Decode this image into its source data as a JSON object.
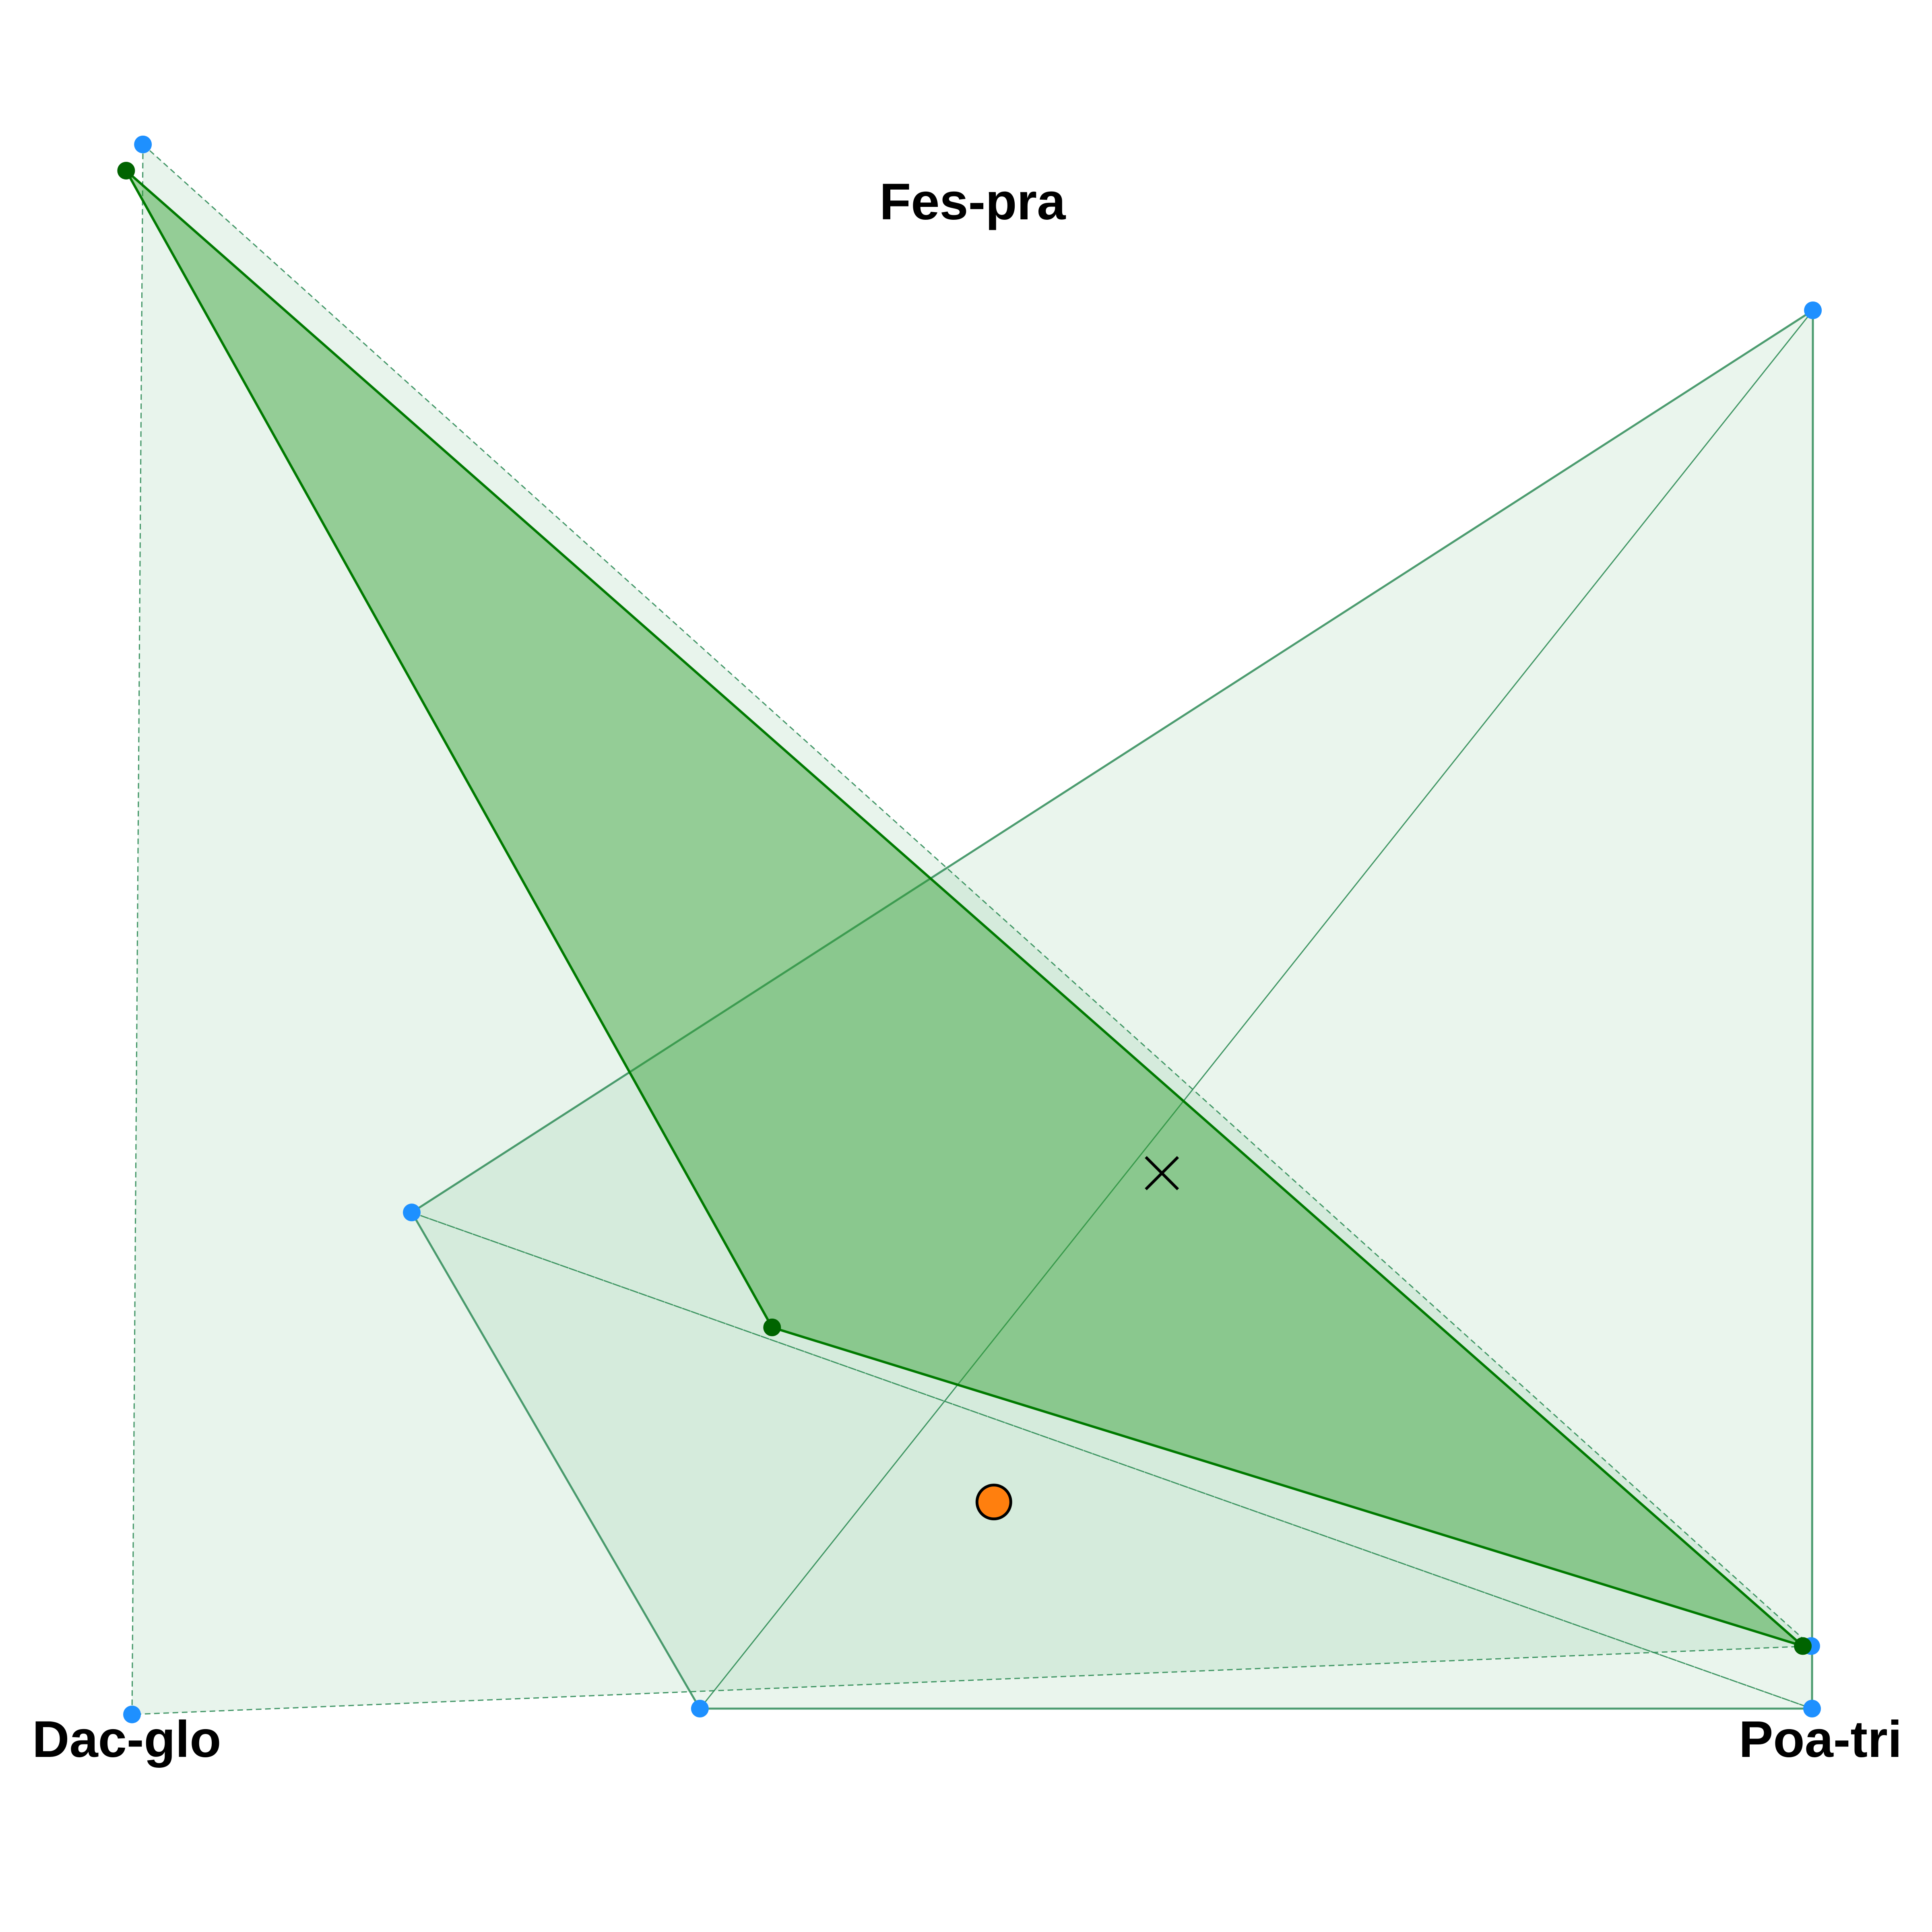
{
  "chart_data": {
    "type": "scatter",
    "subtype": "ternary",
    "vertices": {
      "top": "Fes-pra",
      "left": "Dac-glo",
      "right": "Poa-tri"
    },
    "colors": {
      "frame": "#6e6e6e",
      "outer_fill": "#2e9e4f",
      "outer_edge": "#2e8b57",
      "inner_fill": "#2e9e2e",
      "inner_edge": "#007a00",
      "inner_vertex": "#006400",
      "outer_vertex": "#1e90ff",
      "focal_point": "#ff7f0e",
      "centroid_marker": "#000000"
    },
    "outer_polygons": [
      {
        "name": "",
        "line": "dashed",
        "points": [
          {
            "fes_pra": 1.075,
            "poa_tri": -0.531,
            "dac_glo": 0.456
          },
          {
            "fes_pra": 0.043,
            "poa_tri": 0.978,
            "dac_glo": -0.021
          },
          {
            "fes_pra": -0.004,
            "poa_tri": 0.002,
            "dac_glo": 1.002
          }
        ]
      },
      {
        "name": "",
        "line": "dashed",
        "points": [
          {
            "fes_pra": 0.341,
            "poa_tri": -0.004,
            "dac_glo": 0.663
          },
          {
            "fes_pra": 0.0,
            "poa_tri": 1.0,
            "dac_glo": 0.0
          }
        ]
      },
      {
        "name": "",
        "line": "dashed",
        "points": [
          {
            "fes_pra": 0.0,
            "poa_tri": 0.338,
            "dac_glo": 0.662
          },
          {
            "fes_pra": 0.961,
            "poa_tri": 0.52,
            "dac_glo": -0.481
          }
        ]
      }
    ],
    "frame_polygon": {
      "line": "solid",
      "points": [
        {
          "fes_pra": 0.961,
          "poa_tri": 0.52,
          "dac_glo": -0.481
        },
        {
          "fes_pra": 0.0,
          "poa_tri": 1.0,
          "dac_glo": 0.0
        },
        {
          "fes_pra": 0.0,
          "poa_tri": 0.338,
          "dac_glo": 0.662
        },
        {
          "fes_pra": 0.341,
          "poa_tri": -0.004,
          "dac_glo": 0.663
        }
      ]
    },
    "inner_polygon": {
      "line": "solid",
      "points": [
        {
          "fes_pra": 1.057,
          "poa_tri": -0.532,
          "dac_glo": 0.475
        },
        {
          "fes_pra": 0.043,
          "poa_tri": 0.973,
          "dac_glo": -0.016
        },
        {
          "fes_pra": 0.262,
          "poa_tri": 0.25,
          "dac_glo": 0.488
        }
      ]
    },
    "centroid": {
      "fes_pra": 0.368,
      "poa_tri": 0.429,
      "dac_glo": 0.203
    },
    "focal_point": {
      "fes_pra": 0.142,
      "poa_tri": 0.442,
      "dac_glo": 0.416
    }
  }
}
